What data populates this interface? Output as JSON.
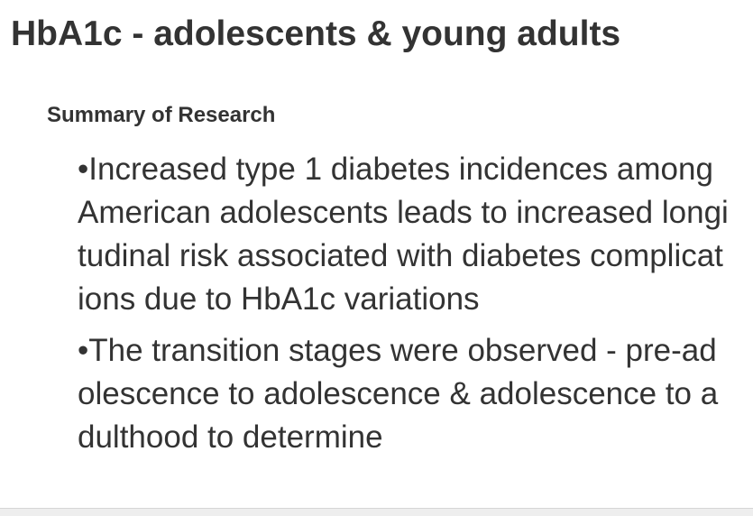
{
  "header": {
    "title": "HbA1c - adolescents & young adults"
  },
  "body": {
    "heading": "Summary of Research",
    "bullets": [
      "•Increased type 1 diabetes incidences among American adolescents leads to increased longitudinal risk associated with diabetes complications due to HbA1c variations",
      "•The transition stages were observed - pre-adolescence to adolescence & adolescence to adulthood to determine"
    ]
  }
}
